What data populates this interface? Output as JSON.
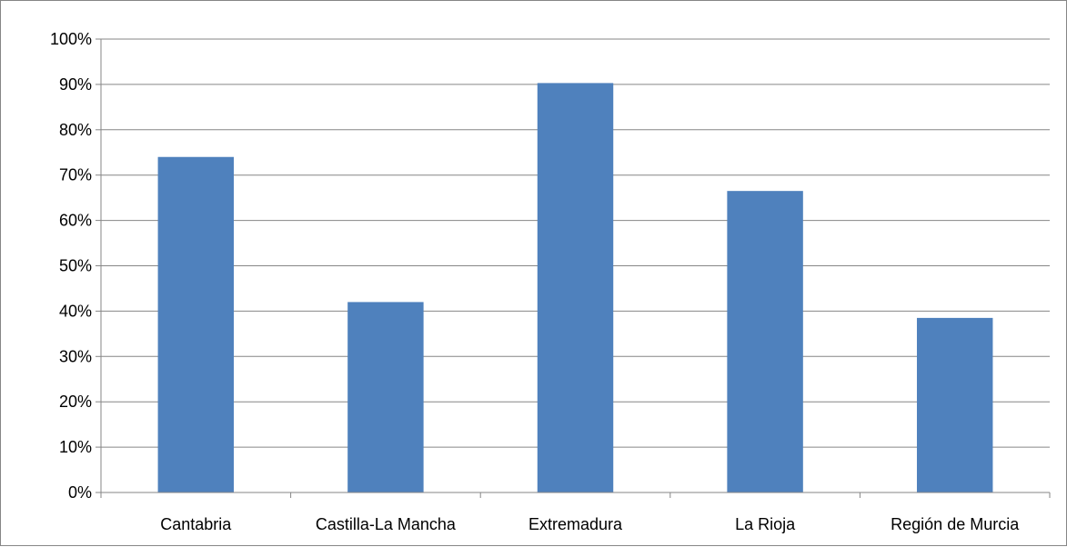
{
  "chart_data": {
    "type": "bar",
    "categories": [
      "Cantabria",
      "Castilla-La Mancha",
      "Extremadura",
      "La Rioja",
      "Región de Murcia"
    ],
    "values": [
      74,
      42,
      90.3,
      66.5,
      38.5
    ],
    "y_tick_labels": [
      "0%",
      "10%",
      "20%",
      "30%",
      "40%",
      "50%",
      "60%",
      "70%",
      "80%",
      "90%",
      "100%"
    ],
    "ylim": [
      0,
      100
    ],
    "grid": true,
    "legend": "none",
    "colors": {
      "bar": "#4f81bd",
      "grid": "#868686",
      "axis": "#868686"
    }
  }
}
